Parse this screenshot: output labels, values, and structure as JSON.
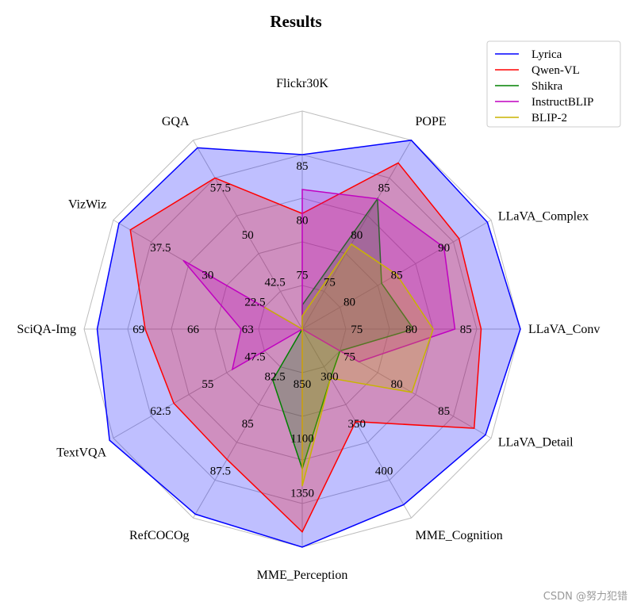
{
  "chart_data": {
    "type": "radar",
    "title": "Results",
    "axes": [
      {
        "name": "Flickr30K",
        "ticks": [
          "75",
          "80",
          "85"
        ]
      },
      {
        "name": "POPE",
        "ticks": [
          "75",
          "80",
          "85"
        ]
      },
      {
        "name": "LLaVA_Complex",
        "ticks": [
          "80",
          "85",
          "90"
        ]
      },
      {
        "name": "LLaVA_Conv",
        "ticks": [
          "75",
          "80",
          "85"
        ]
      },
      {
        "name": "LLaVA_Detail",
        "ticks": [
          "75",
          "80",
          "85"
        ]
      },
      {
        "name": "MME_Cognition",
        "ticks": [
          "300",
          "350",
          "400"
        ]
      },
      {
        "name": "MME_Perception",
        "ticks": [
          "850",
          "1100",
          "1350"
        ]
      },
      {
        "name": "RefCOCOg",
        "ticks": [
          "82.5",
          "85",
          "87.5"
        ]
      },
      {
        "name": "TextVQA",
        "ticks": [
          "47.5",
          "55",
          "62.5"
        ]
      },
      {
        "name": "SciQA-Img",
        "ticks": [
          "63",
          "66",
          "69"
        ]
      },
      {
        "name": "VizWiz",
        "ticks": [
          "22.5",
          "30",
          "37.5"
        ]
      },
      {
        "name": "GQA",
        "ticks": [
          "42.5",
          "50",
          "57.5"
        ]
      }
    ],
    "series": [
      {
        "name": "Lyrica",
        "color": "#0000ff",
        "fill": "#0000ff",
        "values": [
          0.8,
          1.0,
          0.98,
          1.0,
          0.97,
          0.93,
          1.0,
          0.98,
          1.02,
          0.94,
          0.97,
          0.96
        ]
      },
      {
        "name": "Qwen-VL",
        "color": "#ff0000",
        "fill": "#ff0000",
        "values": [
          0.53,
          0.88,
          0.83,
          0.82,
          0.91,
          0.49,
          0.93,
          0.69,
          0.68,
          0.72,
          0.91,
          0.8
        ]
      },
      {
        "name": "Shikra",
        "color": "#008000",
        "fill": "#008000",
        "values": [
          0.11,
          0.69,
          0.42,
          0.51,
          0.2,
          0.26,
          0.64,
          0.27,
          0.0,
          0.0,
          0.0,
          0.0
        ]
      },
      {
        "name": "InstructBLIP",
        "color": "#c000c0",
        "fill": "#c000c0",
        "values": [
          0.64,
          0.69,
          0.75,
          0.7,
          0.3,
          0.0,
          0.63,
          0.0,
          0.37,
          0.28,
          0.63,
          0.0
        ]
      },
      {
        "name": "BLIP-2",
        "color": "#c8b400",
        "fill": "#c8b400",
        "values": [
          0.06,
          0.45,
          0.5,
          0.6,
          0.58,
          0.26,
          0.72,
          0.0,
          0.0,
          0.0,
          0.2,
          0.0
        ]
      }
    ],
    "grid": true,
    "legend_position": "top-right"
  },
  "watermark": "CSDN @努力犯错"
}
